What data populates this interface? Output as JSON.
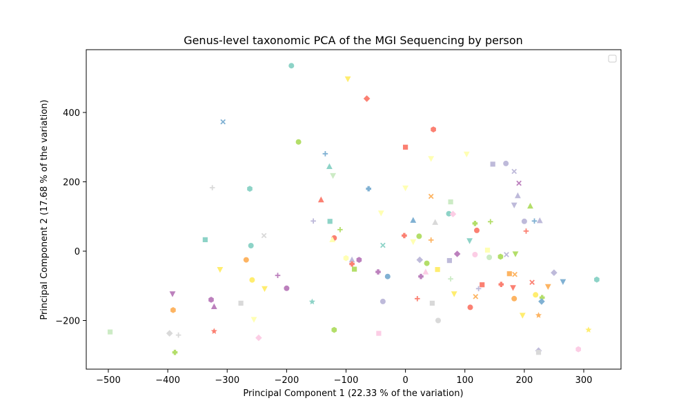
{
  "chart_data": {
    "type": "scatter",
    "title": "Genus-level taxonomic PCA of the MGI Sequencing by person",
    "xlabel": "Principal Component 1 (22.33 % of the variation)",
    "ylabel": "Principal Component 2 (17.68 % of the variation)",
    "xlim": [
      -500,
      300
    ],
    "ylim": [
      -300,
      500
    ],
    "xticks": [
      -500,
      -400,
      -300,
      -200,
      -100,
      0,
      100,
      200,
      300
    ],
    "yticks": [
      -200,
      0,
      200,
      400
    ],
    "grid": false,
    "legend": {
      "position": "top-right",
      "entries": []
    },
    "points": [
      {
        "x": -192,
        "y": 535,
        "marker": "circle",
        "color": "#8dd3c7"
      },
      {
        "x": -97,
        "y": 497,
        "marker": "tri-down",
        "color": "#ffed6f"
      },
      {
        "x": -65,
        "y": 440,
        "marker": "diamond",
        "color": "#fb8072"
      },
      {
        "x": -307,
        "y": 373,
        "marker": "x",
        "color": "#80b1d3"
      },
      {
        "x": 47,
        "y": 351,
        "marker": "hexagon",
        "color": "#fb8072"
      },
      {
        "x": -180,
        "y": 315,
        "marker": "circle",
        "color": "#b3de69"
      },
      {
        "x": 0,
        "y": 300,
        "marker": "square",
        "color": "#fb8072"
      },
      {
        "x": -135,
        "y": 281,
        "marker": "plus",
        "color": "#80b1d3"
      },
      {
        "x": 103,
        "y": 280,
        "marker": "tri-down",
        "color": "#ffffb3"
      },
      {
        "x": 43,
        "y": 267,
        "marker": "tri-down",
        "color": "#ffffb3"
      },
      {
        "x": 147,
        "y": 251,
        "marker": "square",
        "color": "#bebada"
      },
      {
        "x": 169,
        "y": 253,
        "marker": "circle",
        "color": "#bebada"
      },
      {
        "x": -128,
        "y": 244,
        "marker": "triangle",
        "color": "#8dd3c7"
      },
      {
        "x": 183,
        "y": 230,
        "marker": "x",
        "color": "#bebada"
      },
      {
        "x": -122,
        "y": 218,
        "marker": "tri-down",
        "color": "#ccebc5"
      },
      {
        "x": 191,
        "y": 196,
        "marker": "x",
        "color": "#bc80bd"
      },
      {
        "x": -325,
        "y": 183,
        "marker": "plus",
        "color": "#d9d9d9"
      },
      {
        "x": 0,
        "y": 182,
        "marker": "tri-down",
        "color": "#ffffb3"
      },
      {
        "x": -262,
        "y": 180,
        "marker": "hexagon",
        "color": "#8dd3c7"
      },
      {
        "x": -62,
        "y": 180,
        "marker": "cross",
        "color": "#80b1d3"
      },
      {
        "x": 189,
        "y": 160,
        "marker": "triangle",
        "color": "#bebada"
      },
      {
        "x": 43,
        "y": 158,
        "marker": "x",
        "color": "#fdb462"
      },
      {
        "x": -142,
        "y": 148,
        "marker": "triangle",
        "color": "#fb8072"
      },
      {
        "x": 76,
        "y": 142,
        "marker": "square",
        "color": "#ccebc5"
      },
      {
        "x": 183,
        "y": 133,
        "marker": "tri-down",
        "color": "#bebada"
      },
      {
        "x": 210,
        "y": 130,
        "marker": "triangle",
        "color": "#b3de69"
      },
      {
        "x": -41,
        "y": 110,
        "marker": "tri-down",
        "color": "#ffffb3"
      },
      {
        "x": 73,
        "y": 108,
        "marker": "circle",
        "color": "#8dd3c7"
      },
      {
        "x": 80,
        "y": 107,
        "marker": "diamond",
        "color": "#fccde5"
      },
      {
        "x": -155,
        "y": 87,
        "marker": "plus",
        "color": "#bebada"
      },
      {
        "x": -127,
        "y": 86,
        "marker": "square",
        "color": "#8dd3c7"
      },
      {
        "x": 13,
        "y": 89,
        "marker": "triangle",
        "color": "#80b1d3"
      },
      {
        "x": 143,
        "y": 85,
        "marker": "plus",
        "color": "#b3de69"
      },
      {
        "x": 200,
        "y": 86,
        "marker": "circle",
        "color": "#bebada"
      },
      {
        "x": 217,
        "y": 87,
        "marker": "plus",
        "color": "#80b1d3"
      },
      {
        "x": 226,
        "y": 88,
        "marker": "triangle",
        "color": "#bebada"
      },
      {
        "x": 50,
        "y": 83,
        "marker": "triangle",
        "color": "#d9d9d9"
      },
      {
        "x": 117,
        "y": 80,
        "marker": "cross",
        "color": "#b3de69"
      },
      {
        "x": -110,
        "y": 62,
        "marker": "plus",
        "color": "#b3de69"
      },
      {
        "x": 120,
        "y": 60,
        "marker": "circle",
        "color": "#fb8072"
      },
      {
        "x": 203,
        "y": 58,
        "marker": "plus",
        "color": "#fb8072"
      },
      {
        "x": -238,
        "y": 45,
        "marker": "x",
        "color": "#d9d9d9"
      },
      {
        "x": -2,
        "y": 45,
        "marker": "cross",
        "color": "#fb8072"
      },
      {
        "x": 23,
        "y": 43,
        "marker": "circle",
        "color": "#b3de69"
      },
      {
        "x": -120,
        "y": 38,
        "marker": "circle",
        "color": "#fb8072"
      },
      {
        "x": -123,
        "y": 33,
        "marker": "triangle",
        "color": "#ffffb3"
      },
      {
        "x": -337,
        "y": 33,
        "marker": "square",
        "color": "#8dd3c7"
      },
      {
        "x": 43,
        "y": 32,
        "marker": "plus",
        "color": "#fdb462"
      },
      {
        "x": 108,
        "y": 30,
        "marker": "tri-down",
        "color": "#8dd3c7"
      },
      {
        "x": 13,
        "y": 27,
        "marker": "tri-down",
        "color": "#ffffb3"
      },
      {
        "x": -38,
        "y": 17,
        "marker": "x",
        "color": "#8dd3c7"
      },
      {
        "x": -260,
        "y": 16,
        "marker": "circle",
        "color": "#8dd3c7"
      },
      {
        "x": 138,
        "y": 3,
        "marker": "square",
        "color": "#ffffb3"
      },
      {
        "x": 87,
        "y": -8,
        "marker": "diamond",
        "color": "#bc80bd"
      },
      {
        "x": 185,
        "y": -8,
        "marker": "tri-down",
        "color": "#b3de69"
      },
      {
        "x": 117,
        "y": -10,
        "marker": "circle",
        "color": "#fccde5"
      },
      {
        "x": 170,
        "y": -10,
        "marker": "x",
        "color": "#bebada"
      },
      {
        "x": 160,
        "y": -16,
        "marker": "hexagon",
        "color": "#b3de69"
      },
      {
        "x": 141,
        "y": -18,
        "marker": "circle",
        "color": "#ccebc5"
      },
      {
        "x": -100,
        "y": -20,
        "marker": "hexagon",
        "color": "#ffffb3"
      },
      {
        "x": -90,
        "y": -25,
        "marker": "triangle",
        "color": "#bebada"
      },
      {
        "x": -78,
        "y": -25,
        "marker": "hexagon",
        "color": "#bc80bd"
      },
      {
        "x": -268,
        "y": -25,
        "marker": "circle",
        "color": "#fdb462"
      },
      {
        "x": 74,
        "y": -27,
        "marker": "square",
        "color": "#bebada"
      },
      {
        "x": 24,
        "y": -25,
        "marker": "diamond",
        "color": "#bebada"
      },
      {
        "x": 36,
        "y": -35,
        "marker": "circle",
        "color": "#b3de69"
      },
      {
        "x": -90,
        "y": -37,
        "marker": "cross",
        "color": "#fb8072"
      },
      {
        "x": -86,
        "y": -52,
        "marker": "square",
        "color": "#b3de69"
      },
      {
        "x": 54,
        "y": -53,
        "marker": "square",
        "color": "#ffed6f"
      },
      {
        "x": -312,
        "y": -53,
        "marker": "tri-down",
        "color": "#ffed6f"
      },
      {
        "x": -46,
        "y": -60,
        "marker": "cross",
        "color": "#bc80bd"
      },
      {
        "x": 34,
        "y": -60,
        "marker": "triangle",
        "color": "#fccde5"
      },
      {
        "x": 175,
        "y": -65,
        "marker": "square",
        "color": "#fdb462"
      },
      {
        "x": 184,
        "y": -67,
        "marker": "x",
        "color": "#fdb462"
      },
      {
        "x": -215,
        "y": -70,
        "marker": "plus",
        "color": "#bc80bd"
      },
      {
        "x": -30,
        "y": -73,
        "marker": "circle",
        "color": "#80b1d3"
      },
      {
        "x": 26,
        "y": -73,
        "marker": "cross",
        "color": "#bc80bd"
      },
      {
        "x": 76,
        "y": -80,
        "marker": "plus",
        "color": "#ccebc5"
      },
      {
        "x": -258,
        "y": -83,
        "marker": "circle",
        "color": "#ffed6f"
      },
      {
        "x": 250,
        "y": -62,
        "marker": "diamond",
        "color": "#bebada"
      },
      {
        "x": 265,
        "y": -88,
        "marker": "tri-down",
        "color": "#80b1d3"
      },
      {
        "x": 322,
        "y": -82,
        "marker": "hexagon",
        "color": "#8dd3c7"
      },
      {
        "x": 213,
        "y": -90,
        "marker": "x",
        "color": "#fb8072"
      },
      {
        "x": 129,
        "y": -97,
        "marker": "square",
        "color": "#fb8072"
      },
      {
        "x": 161,
        "y": -96,
        "marker": "cross",
        "color": "#fb8072"
      },
      {
        "x": 240,
        "y": -102,
        "marker": "tri-down",
        "color": "#fdb462"
      },
      {
        "x": 181,
        "y": -105,
        "marker": "tri-down",
        "color": "#fb8072"
      },
      {
        "x": -200,
        "y": -107,
        "marker": "circle",
        "color": "#bc80bd"
      },
      {
        "x": 123,
        "y": -108,
        "marker": "plus",
        "color": "#bebada"
      },
      {
        "x": -237,
        "y": -108,
        "marker": "tri-down",
        "color": "#ffed6f"
      },
      {
        "x": 82,
        "y": -123,
        "marker": "tri-down",
        "color": "#ffed6f"
      },
      {
        "x": -392,
        "y": -123,
        "marker": "tri-down",
        "color": "#bc80bd"
      },
      {
        "x": 219,
        "y": -126,
        "marker": "circle",
        "color": "#ffed6f"
      },
      {
        "x": 118,
        "y": -131,
        "marker": "x",
        "color": "#fdb462"
      },
      {
        "x": 230,
        "y": -134,
        "marker": "cross",
        "color": "#b3de69"
      },
      {
        "x": 183,
        "y": -137,
        "marker": "circle",
        "color": "#fdb462"
      },
      {
        "x": 20,
        "y": -137,
        "marker": "plus",
        "color": "#fb8072"
      },
      {
        "x": -327,
        "y": -140,
        "marker": "hexagon",
        "color": "#bc80bd"
      },
      {
        "x": -38,
        "y": -145,
        "marker": "circle",
        "color": "#bebada"
      },
      {
        "x": 45,
        "y": -150,
        "marker": "square",
        "color": "#d9d9d9"
      },
      {
        "x": 229,
        "y": -145,
        "marker": "diamond",
        "color": "#80b1d3"
      },
      {
        "x": -157,
        "y": -146,
        "marker": "star",
        "color": "#8dd3c7"
      },
      {
        "x": -277,
        "y": -150,
        "marker": "square",
        "color": "#d9d9d9"
      },
      {
        "x": -322,
        "y": -160,
        "marker": "triangle",
        "color": "#bc80bd"
      },
      {
        "x": 109,
        "y": -162,
        "marker": "circle",
        "color": "#fb8072"
      },
      {
        "x": -391,
        "y": -170,
        "marker": "hexagon",
        "color": "#fdb462"
      },
      {
        "x": 197,
        "y": -185,
        "marker": "tri-down",
        "color": "#ffed6f"
      },
      {
        "x": 224,
        "y": -185,
        "marker": "star",
        "color": "#fdb462"
      },
      {
        "x": -255,
        "y": -197,
        "marker": "tri-down",
        "color": "#ffffb3"
      },
      {
        "x": 55,
        "y": -200,
        "marker": "circle",
        "color": "#d9d9d9"
      },
      {
        "x": 308,
        "y": -227,
        "marker": "star",
        "color": "#ffed6f"
      },
      {
        "x": -120,
        "y": -227,
        "marker": "hexagon",
        "color": "#b3de69"
      },
      {
        "x": -322,
        "y": -231,
        "marker": "star",
        "color": "#fb8072"
      },
      {
        "x": -497,
        "y": -233,
        "marker": "square",
        "color": "#ccebc5"
      },
      {
        "x": -45,
        "y": -237,
        "marker": "square",
        "color": "#fccde5"
      },
      {
        "x": -397,
        "y": -237,
        "marker": "diamond",
        "color": "#d9d9d9"
      },
      {
        "x": -382,
        "y": -242,
        "marker": "plus",
        "color": "#d9d9d9"
      },
      {
        "x": -247,
        "y": -250,
        "marker": "diamond",
        "color": "#fccde5"
      },
      {
        "x": 291,
        "y": -283,
        "marker": "hexagon",
        "color": "#fccde5"
      },
      {
        "x": 224,
        "y": -287,
        "marker": "diamond",
        "color": "#bebada"
      },
      {
        "x": 224,
        "y": -292,
        "marker": "square",
        "color": "#d9d9d9"
      },
      {
        "x": -388,
        "y": -292,
        "marker": "cross",
        "color": "#b3de69"
      }
    ]
  }
}
